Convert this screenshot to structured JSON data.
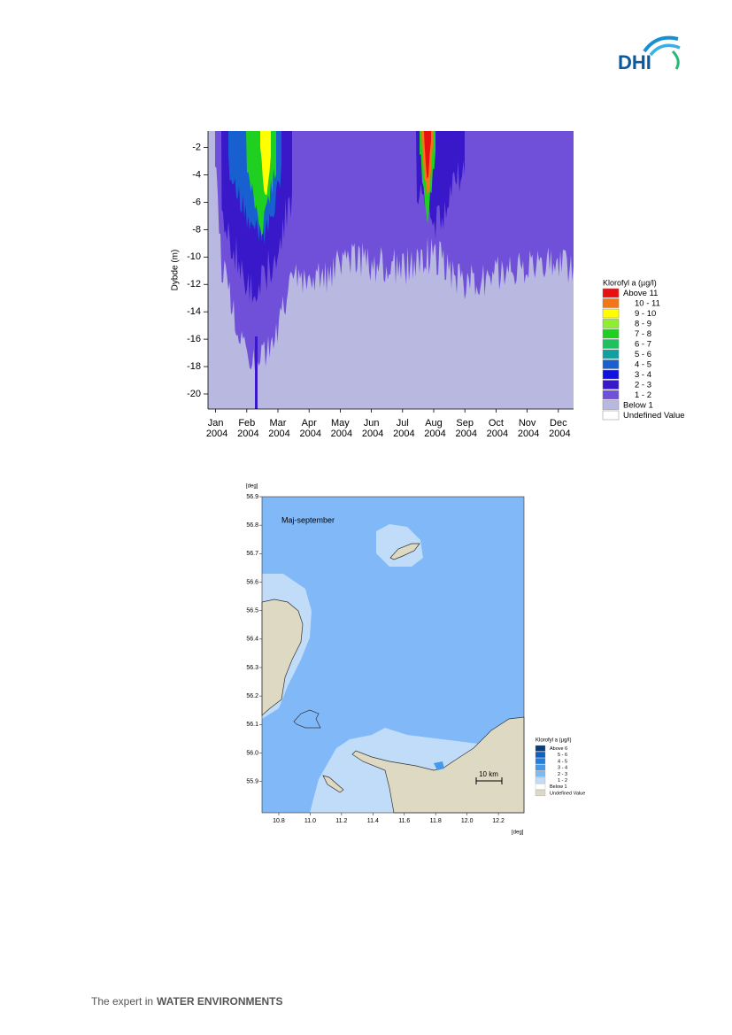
{
  "logo": "DHI",
  "chart_data": [
    {
      "type": "contour",
      "ylabel": "Dybde (m)",
      "categories": [
        "Jan 2004",
        "Feb 2004",
        "Mar 2004",
        "Apr 2004",
        "May 2004",
        "Jun 2004",
        "Jul 2004",
        "Aug 2004",
        "Sep 2004",
        "Oct 2004",
        "Nov 2004",
        "Dec 2004"
      ],
      "ylim": [
        -21.1,
        -0.8
      ],
      "yticks": [
        -2,
        -4,
        -6,
        -8,
        -10,
        -12,
        -14,
        -16,
        -18,
        -20
      ],
      "legend": {
        "title": "Klorofyl a (µg/l)",
        "items": [
          {
            "label": "Above 11",
            "color": "#e81010"
          },
          {
            "label": "10 - 11",
            "color": "#f07818"
          },
          {
            "label": "9 - 10",
            "color": "#ffff00"
          },
          {
            "label": "8 - 9",
            "color": "#90ee30"
          },
          {
            "label": "7 - 8",
            "color": "#20d020"
          },
          {
            "label": "6 - 7",
            "color": "#20c060"
          },
          {
            "label": "5 - 6",
            "color": "#10a0a0"
          },
          {
            "label": "4 - 5",
            "color": "#1860d0"
          },
          {
            "label": "3 - 4",
            "color": "#1010e0"
          },
          {
            "label": "2 - 3",
            "color": "#3818c8"
          },
          {
            "label": "1 - 2",
            "color": "#7050d8"
          },
          {
            "label": "Below 1",
            "color": "#b8b8e0"
          },
          {
            "label": "Undefined Value",
            "color": "#ffffff"
          }
        ]
      }
    },
    {
      "type": "map",
      "annotation": "Maj-september",
      "scale_bar": "10 km",
      "xlabel": "[deg]",
      "ylabel": "[deg]",
      "xlim": [
        10.693,
        12.363
      ],
      "xticks": [
        10.8,
        {
          "value": 11,
          "label": "11.0"
        },
        11.2,
        11.4,
        11.6,
        11.8,
        {
          "value": 12,
          "label": "12.0"
        },
        12.2
      ],
      "ylim": [
        55.79,
        56.9
      ],
      "yticks": [
        55.9,
        {
          "value": 56,
          "label": "56.0"
        },
        56.1,
        56.2,
        56.3,
        56.4,
        56.5,
        56.6,
        56.7,
        56.8,
        56.9
      ],
      "legend": {
        "title": "Klorofyl a (µg/l)",
        "items": [
          {
            "label": "Above 6",
            "color": "#0a3d7a"
          },
          {
            "label": "5 - 6",
            "color": "#1060c0"
          },
          {
            "label": "4 - 5",
            "color": "#2080e0"
          },
          {
            "label": "3 - 4",
            "color": "#4898e8"
          },
          {
            "label": "2 - 3",
            "color": "#80b8f0"
          },
          {
            "label": "1 - 2",
            "color": "#c0dcf8"
          },
          {
            "label": "Below 1",
            "color": "#ffffff"
          },
          {
            "label": "Undefined Value",
            "color": "#ddd9c3"
          }
        ]
      }
    }
  ],
  "footer": {
    "text": "The expert in",
    "emphasis": "WATER ENVIRONMENTS"
  }
}
